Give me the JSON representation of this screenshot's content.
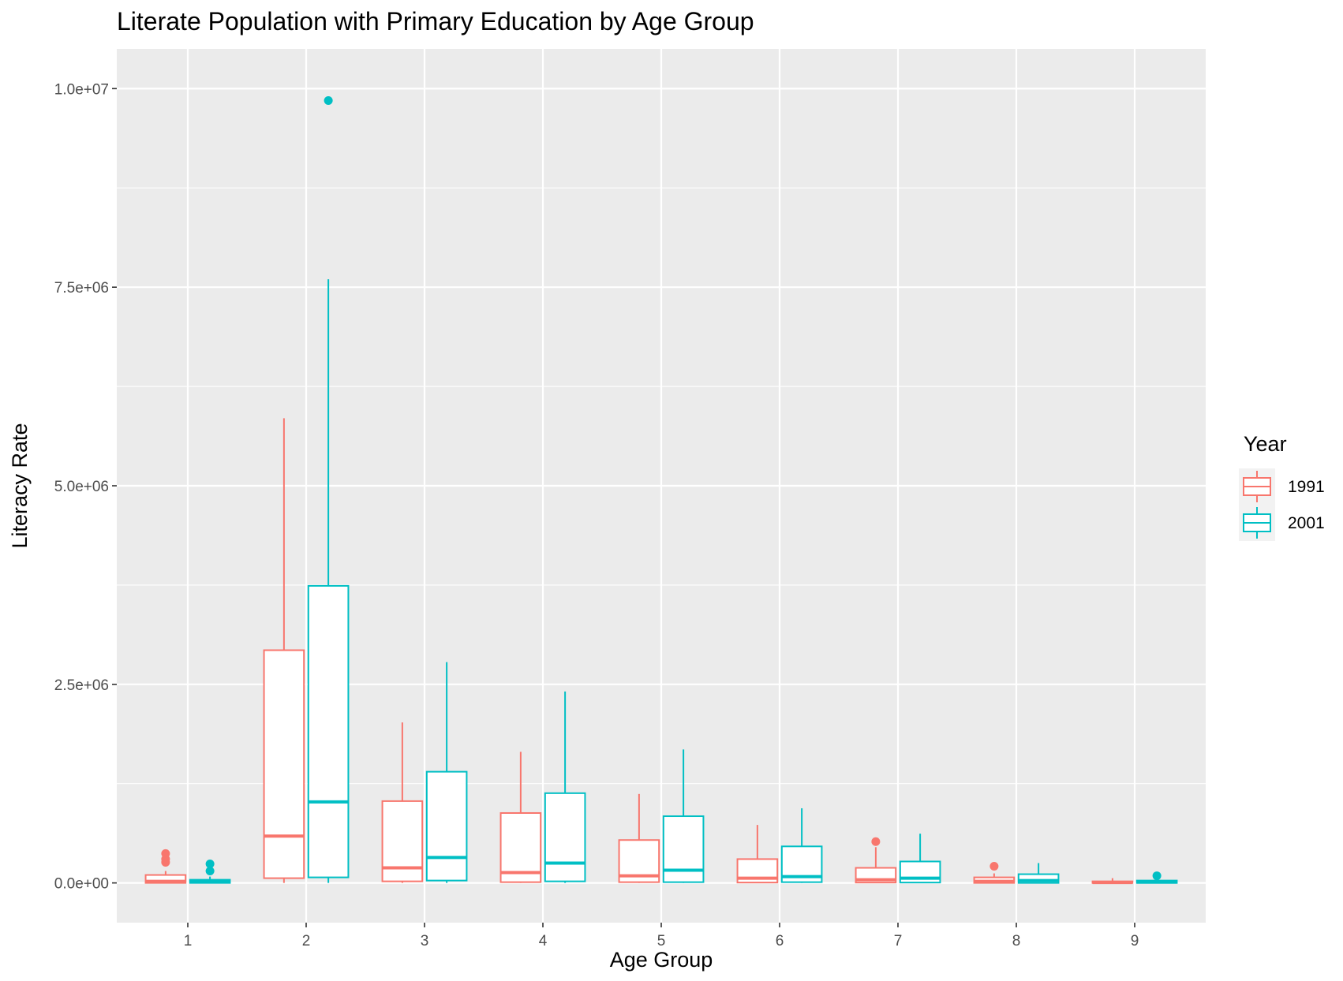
{
  "chart_data": {
    "type": "boxplot",
    "title": "Literate Population with Primary Education by Age Group",
    "xlabel": "Age Group",
    "ylabel": "Literacy Rate",
    "categories": [
      "1",
      "2",
      "3",
      "4",
      "5",
      "6",
      "7",
      "8",
      "9"
    ],
    "ylim": [
      -500000,
      10500000
    ],
    "y_ticks": [
      0,
      2500000,
      5000000,
      7500000,
      10000000
    ],
    "y_tick_labels": [
      "0.0e+00",
      "2.5e+06",
      "5.0e+06",
      "7.5e+06",
      "1.0e+07"
    ],
    "grid": true,
    "legend": {
      "title": "Year",
      "position": "right",
      "entries": [
        {
          "label": "1991",
          "color": "#F8766D"
        },
        {
          "label": "2001",
          "color": "#00BFC4"
        }
      ]
    },
    "series": [
      {
        "name": "1991",
        "color": "#F8766D",
        "boxes": [
          {
            "min": 0,
            "q1": 0,
            "median": 20000,
            "q3": 100000,
            "max": 150000,
            "outliers": [
              260000,
              300000,
              370000
            ]
          },
          {
            "min": 0,
            "q1": 60000,
            "median": 590000,
            "q3": 2930000,
            "max": 5850000,
            "outliers": []
          },
          {
            "min": 0,
            "q1": 20000,
            "median": 190000,
            "q3": 1030000,
            "max": 2020000,
            "outliers": []
          },
          {
            "min": 0,
            "q1": 10000,
            "median": 130000,
            "q3": 880000,
            "max": 1650000,
            "outliers": []
          },
          {
            "min": 0,
            "q1": 10000,
            "median": 90000,
            "q3": 540000,
            "max": 1120000,
            "outliers": []
          },
          {
            "min": 0,
            "q1": 5000,
            "median": 60000,
            "q3": 300000,
            "max": 730000,
            "outliers": []
          },
          {
            "min": 0,
            "q1": 5000,
            "median": 40000,
            "q3": 190000,
            "max": 450000,
            "outliers": [
              520000
            ]
          },
          {
            "min": 0,
            "q1": 0,
            "median": 20000,
            "q3": 70000,
            "max": 120000,
            "outliers": [
              210000
            ]
          },
          {
            "min": 0,
            "q1": 0,
            "median": 5000,
            "q3": 20000,
            "max": 60000,
            "outliers": []
          }
        ]
      },
      {
        "name": "2001",
        "color": "#00BFC4",
        "boxes": [
          {
            "min": 0,
            "q1": 0,
            "median": 15000,
            "q3": 40000,
            "max": 80000,
            "outliers": [
              150000,
              240000
            ]
          },
          {
            "min": 0,
            "q1": 70000,
            "median": 1020000,
            "q3": 3740000,
            "max": 7600000,
            "outliers": [
              9850000
            ]
          },
          {
            "min": 0,
            "q1": 30000,
            "median": 320000,
            "q3": 1400000,
            "max": 2780000,
            "outliers": []
          },
          {
            "min": 0,
            "q1": 20000,
            "median": 250000,
            "q3": 1130000,
            "max": 2410000,
            "outliers": []
          },
          {
            "min": 0,
            "q1": 10000,
            "median": 160000,
            "q3": 840000,
            "max": 1680000,
            "outliers": []
          },
          {
            "min": 0,
            "q1": 10000,
            "median": 80000,
            "q3": 460000,
            "max": 940000,
            "outliers": []
          },
          {
            "min": 0,
            "q1": 5000,
            "median": 60000,
            "q3": 270000,
            "max": 620000,
            "outliers": []
          },
          {
            "min": 0,
            "q1": 0,
            "median": 30000,
            "q3": 110000,
            "max": 250000,
            "outliers": []
          },
          {
            "min": 0,
            "q1": 0,
            "median": 10000,
            "q3": 30000,
            "max": 50000,
            "outliers": [
              90000
            ]
          }
        ]
      }
    ]
  }
}
